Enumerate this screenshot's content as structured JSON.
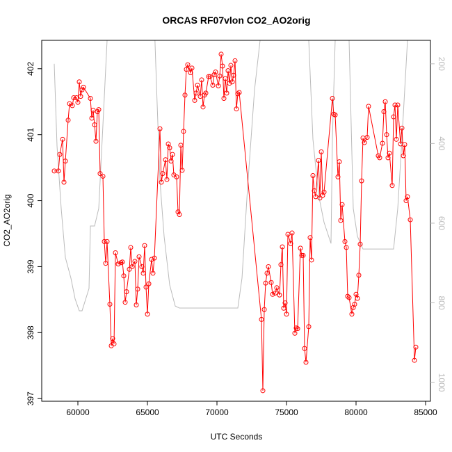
{
  "chart_data": {
    "type": "line",
    "title": "ORCAS RF07vlon CO2_AO2orig",
    "x_label": "UTC Seconds",
    "y_label": "CO2_AO2orig",
    "xlim": [
      57400,
      85350
    ],
    "xticks": [
      60000,
      65000,
      70000,
      75000,
      80000,
      85000
    ],
    "ylim": [
      396.96,
      402.43
    ],
    "yticks": [
      397,
      398,
      399,
      400,
      401,
      402
    ],
    "y2lim": [
      1047,
      141
    ],
    "y2ticks": [
      200,
      400,
      600,
      800,
      1000
    ],
    "y2_color": "#bbbbbb",
    "series": [
      {
        "color": "#ff0000",
        "markers": true,
        "x": [
          58300,
          58600,
          58700,
          58900,
          59000,
          59100,
          59300,
          59400,
          59600,
          59700,
          59900,
          60000,
          60100,
          60200,
          60300,
          60400,
          60900,
          61000,
          61100,
          61200,
          61300,
          61400,
          61500,
          61600,
          61800,
          61900,
          62000,
          62100,
          62300,
          62400,
          62500,
          62600,
          62700,
          62900,
          63100,
          63200,
          63300,
          63400,
          63500,
          63700,
          63800,
          63900,
          64100,
          64200,
          64300,
          64400,
          64600,
          64700,
          64800,
          64900,
          65000,
          65100,
          65300,
          65400,
          65500,
          65900,
          66000,
          66100,
          66300,
          66400,
          66500,
          66600,
          66700,
          66800,
          66900,
          67100,
          67200,
          67300,
          67400,
          67500,
          67600,
          67700,
          67800,
          67900,
          68100,
          68200,
          68400,
          68500,
          68600,
          68800,
          68900,
          69000,
          69100,
          69200,
          69400,
          69500,
          69700,
          69800,
          69900,
          70100,
          70200,
          70300,
          70400,
          70500,
          70600,
          70700,
          70800,
          70900,
          71000,
          71100,
          71200,
          71300,
          71400,
          71500,
          71600,
          73200,
          73300,
          73400,
          73500,
          73600,
          73700,
          73900,
          74000,
          74200,
          74300,
          74500,
          74600,
          74700,
          74800,
          74900,
          75000,
          75100,
          75300,
          75400,
          75600,
          75700,
          75800,
          76000,
          76100,
          76200,
          76300,
          76400,
          76600,
          76700,
          76800,
          76900,
          77000,
          77100,
          77300,
          77400,
          77500,
          77600,
          77700,
          78300,
          78400,
          78500,
          78700,
          78800,
          78900,
          79000,
          79200,
          79300,
          79400,
          79500,
          79700,
          79800,
          79900,
          80000,
          80100,
          80200,
          80300,
          80400,
          80500,
          80600,
          80800,
          80900,
          81600,
          81700,
          81900,
          82000,
          82100,
          82200,
          82300,
          82400,
          82600,
          82700,
          82800,
          82900,
          83000,
          83200,
          83300,
          83400,
          83500,
          83600,
          83700,
          83900,
          84200,
          84300
        ],
        "values": [
          400.45,
          400.45,
          400.7,
          400.93,
          400.28,
          400.6,
          401.22,
          401.47,
          401.44,
          401.56,
          401.56,
          401.49,
          401.8,
          401.58,
          401.68,
          401.72,
          401.55,
          401.25,
          401.37,
          401.15,
          400.9,
          401.35,
          401.38,
          400.41,
          400.37,
          399.38,
          399.05,
          399.38,
          398.43,
          397.8,
          397.91,
          397.83,
          399.21,
          399.04,
          399.06,
          399.07,
          398.86,
          398.46,
          398.62,
          398.96,
          399.29,
          399.0,
          399.08,
          398.42,
          398.66,
          399.15,
          399.0,
          398.9,
          399.32,
          398.69,
          398.28,
          398.74,
          399.11,
          398.9,
          399.13,
          401.09,
          400.28,
          400.41,
          400.62,
          400.32,
          400.86,
          400.8,
          400.6,
          400.7,
          400.39,
          400.36,
          399.83,
          399.79,
          400.84,
          400.46,
          401.05,
          401.6,
          401.99,
          402.06,
          401.94,
          402.01,
          401.52,
          401.63,
          401.75,
          401.58,
          401.83,
          401.42,
          401.6,
          401.63,
          401.88,
          401.88,
          401.75,
          401.91,
          401.95,
          401.74,
          401.89,
          402.22,
          402.04,
          401.55,
          401.85,
          401.63,
          401.97,
          401.78,
          402.05,
          401.8,
          401.9,
          402.12,
          401.39,
          401.62,
          401.64,
          398.2,
          397.12,
          398.35,
          398.75,
          398.9,
          399.0,
          398.76,
          398.58,
          398.6,
          398.68,
          398.57,
          399.03,
          399.3,
          398.37,
          398.45,
          398.28,
          399.49,
          399.35,
          399.51,
          397.99,
          398.07,
          398.06,
          399.28,
          399.17,
          399.17,
          397.76,
          397.55,
          398.09,
          399.44,
          399.1,
          400.38,
          400.15,
          400.06,
          400.61,
          400.04,
          400.74,
          400.08,
          400.13,
          401.55,
          401.31,
          401.3,
          400.36,
          400.59,
          399.7,
          399.94,
          399.38,
          399.29,
          398.55,
          398.53,
          398.28,
          398.38,
          398.43,
          398.58,
          398.52,
          398.87,
          399.34,
          400.3,
          400.95,
          400.88,
          400.96,
          401.43,
          400.68,
          400.65,
          400.87,
          401.35,
          401.5,
          401.0,
          400.65,
          400.72,
          400.23,
          401.27,
          401.45,
          400.93,
          401.45,
          400.86,
          401.1,
          400.68,
          400.85,
          400.0,
          400.06,
          399.71,
          397.58,
          397.78
        ]
      },
      {
        "color": "#bbbbbb",
        "axis": "y2",
        "markers": false,
        "x": [
          58300,
          58500,
          58800,
          59100,
          59500,
          59800,
          60100,
          60300,
          60800,
          60900,
          61200,
          61500,
          61800,
          62100,
          62300,
          65500,
          65700,
          65900,
          66200,
          66600,
          67000,
          67300,
          71500,
          71800,
          72200,
          72700,
          73100,
          73300,
          76500,
          76600,
          76900,
          77300,
          77700,
          78200,
          78300,
          78500,
          78600,
          79300,
          79500,
          79800,
          80100,
          80500,
          82700,
          83000,
          83300,
          83700,
          83900
        ],
        "values": [
          200,
          406,
          563,
          686,
          738,
          790,
          820,
          820,
          764,
          607,
          607,
          563,
          354,
          141,
          100,
          100,
          301,
          493,
          633,
          755,
          808,
          813,
          813,
          738,
          511,
          266,
          141,
          100,
          100,
          141,
          389,
          528,
          598,
          651,
          389,
          141,
          100,
          100,
          141,
          563,
          633,
          665,
          665,
          563,
          389,
          141,
          100
        ]
      }
    ]
  }
}
